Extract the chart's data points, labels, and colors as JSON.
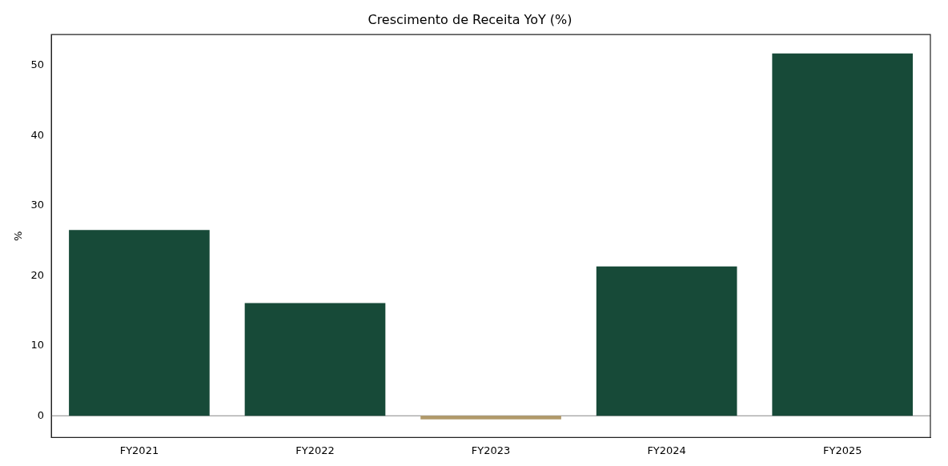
{
  "chart_data": {
    "type": "bar",
    "title": "Crescimento de Receita YoY (%)",
    "ylabel": "%",
    "categories": [
      "FY2021",
      "FY2022",
      "FY2023",
      "FY2024",
      "FY2025"
    ],
    "values": [
      26.5,
      16.1,
      -0.5,
      21.3,
      51.7
    ],
    "colors": [
      "#174a38",
      "#174a38",
      "#b19a6a",
      "#174a38",
      "#174a38"
    ],
    "ylim": [
      -3.1,
      54.4
    ],
    "yticks": [
      0,
      10,
      20,
      30,
      40,
      50
    ],
    "grid": false,
    "legend": false,
    "ref_lines": [
      {
        "axis": "y",
        "value": 0,
        "color": "#888888"
      }
    ]
  }
}
